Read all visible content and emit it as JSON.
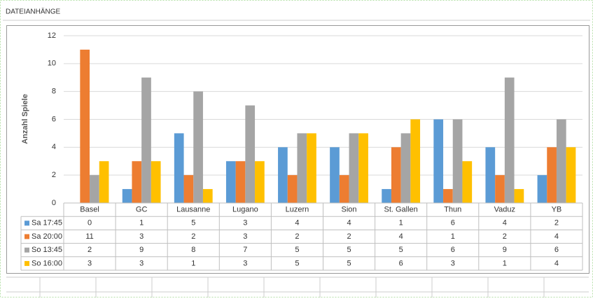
{
  "header": {
    "title": "DATEIANHÄNGE"
  },
  "chart_data": {
    "type": "bar",
    "y_label": "Anzahl Spiele",
    "categories": [
      "Basel",
      "GC",
      "Lausanne",
      "Lugano",
      "Luzern",
      "Sion",
      "St. Gallen",
      "Thun",
      "Vaduz",
      "YB"
    ],
    "series": [
      {
        "name": "Sa 17:45",
        "color": "#5b9bd5",
        "values": [
          0,
          1,
          5,
          3,
          4,
          4,
          1,
          6,
          4,
          2
        ]
      },
      {
        "name": "Sa 20:00",
        "color": "#ed7d31",
        "values": [
          11,
          3,
          2,
          3,
          2,
          2,
          4,
          1,
          2,
          4
        ]
      },
      {
        "name": "So 13:45",
        "color": "#a5a5a5",
        "values": [
          2,
          9,
          8,
          7,
          5,
          5,
          5,
          6,
          9,
          6
        ]
      },
      {
        "name": "So 16:00",
        "color": "#ffc000",
        "values": [
          3,
          3,
          1,
          3,
          5,
          5,
          6,
          3,
          1,
          4
        ]
      }
    ],
    "ylim": [
      0,
      12
    ],
    "yticks": [
      0,
      2,
      4,
      6,
      8,
      10,
      12
    ],
    "grid": true
  }
}
